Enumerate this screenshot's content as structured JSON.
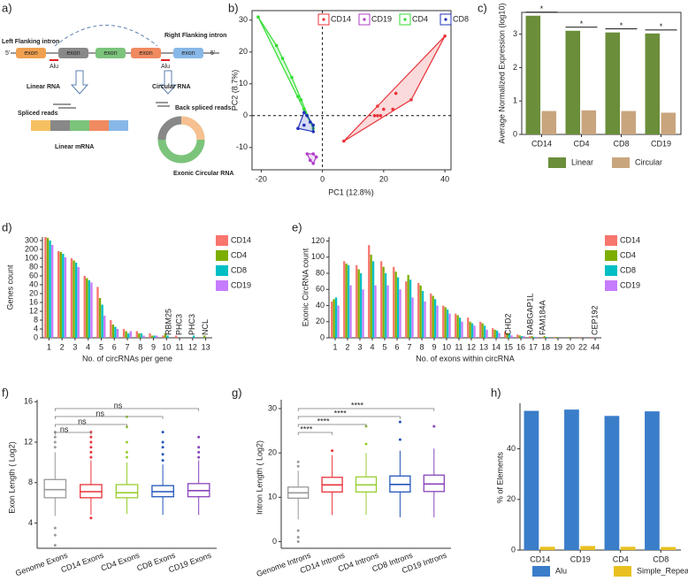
{
  "diagram": {
    "panel_label": "a)",
    "left_intron": "Left Flanking intron",
    "right_intron": "Right Flanking intron",
    "five_prime": [
      "5'",
      "5'"
    ],
    "exons": [
      "exon",
      "exon",
      "exon",
      "exon",
      "exon"
    ],
    "alu": [
      "Alu",
      "Alu"
    ],
    "linear_rna": "Linear RNA",
    "circular_rna": "Circular RNA",
    "spliced_reads": "Spliced reads",
    "back_spliced_reads": "Back spliced reads",
    "linear_mrna": "Linear mRNA",
    "exonic_circular_rna": "Exonic Circular RNA"
  },
  "chart_data": [
    {
      "type": "scatter",
      "panel_label": "b)",
      "x_label": "PC1 (12.8%)",
      "y_label": "PC2 (8.7%)",
      "xlim": [
        -23,
        42
      ],
      "ylim": [
        -17,
        33
      ],
      "xticks": [
        -20,
        0,
        20,
        40
      ],
      "yticks": [
        -10,
        0,
        10,
        20,
        30
      ],
      "frame": true,
      "zero_lines": true,
      "series": [
        {
          "name": "CD14",
          "color": "#e8333a",
          "x": [
            40,
            7,
            29,
            24,
            18,
            17,
            19,
            20,
            23,
            18
          ],
          "y": [
            25,
            -8,
            5,
            7,
            0,
            0,
            0,
            2,
            2,
            3
          ]
        },
        {
          "name": "CD19",
          "color": "#b03cc8",
          "x": [
            -3,
            -4,
            -2,
            -5,
            -3
          ],
          "y": [
            -12,
            -14,
            -13,
            -12,
            -15
          ]
        },
        {
          "name": "CD4",
          "color": "#33dd33",
          "x": [
            -21,
            -15,
            -13,
            -10,
            -8,
            -6,
            -5,
            -4,
            -3,
            -7
          ],
          "y": [
            31,
            22,
            18,
            12,
            6,
            2,
            0,
            -2,
            -4,
            5
          ]
        },
        {
          "name": "CD8",
          "color": "#2233bb",
          "x": [
            -5,
            -4,
            -3,
            -6,
            -3,
            -8,
            -6
          ],
          "y": [
            0,
            -2,
            -3,
            1,
            -5,
            -4,
            -3
          ]
        }
      ]
    },
    {
      "type": "bar",
      "panel_label": "c)",
      "y_label": "Average Normalized Expression (log10)",
      "categories": [
        "CD14",
        "CD4",
        "CD8",
        "CD19"
      ],
      "ylim": [
        0,
        3.65
      ],
      "yticks": [
        0,
        1,
        2,
        3
      ],
      "frame": true,
      "series": [
        {
          "name": "Linear",
          "color": "#6b8e3a",
          "values": [
            3.55,
            3.1,
            3.05,
            3.02
          ]
        },
        {
          "name": "Circular",
          "color": "#c9a57e",
          "values": [
            0.7,
            0.72,
            0.7,
            0.65
          ]
        }
      ],
      "annotations": [
        {
          "text": "*",
          "color": "#111"
        },
        {
          "text": "*",
          "color": "#111"
        },
        {
          "text": "*",
          "color": "#111"
        },
        {
          "text": "*",
          "color": "#111"
        }
      ]
    },
    {
      "type": "bar",
      "panel_label": "d)",
      "x_label": "No. of circRNAs per gene",
      "y_label": "Genes count",
      "y_scale": "piecewise",
      "categories": [
        "1",
        "2",
        "3",
        "4",
        "5",
        "6",
        "7",
        "8",
        "9",
        "10",
        "11",
        "12",
        "13"
      ],
      "ylim": [
        0,
        340
      ],
      "yticks": [
        0,
        4,
        8,
        12,
        16,
        20,
        40,
        60,
        80,
        100,
        200,
        300
      ],
      "series": [
        {
          "name": "CD14",
          "color": "#f8766d",
          "values": [
            340,
            180,
            100,
            60,
            35,
            8,
            4,
            3,
            2,
            1,
            1,
            0,
            0
          ]
        },
        {
          "name": "CD4",
          "color": "#7cae00",
          "values": [
            330,
            170,
            95,
            55,
            18,
            6,
            3,
            2,
            1,
            2,
            0,
            0,
            1
          ]
        },
        {
          "name": "CD8",
          "color": "#00bfc4",
          "values": [
            300,
            150,
            90,
            50,
            15,
            5,
            2,
            2,
            1,
            1,
            0,
            1,
            0
          ]
        },
        {
          "name": "CD19",
          "color": "#c77cff",
          "values": [
            250,
            110,
            80,
            45,
            10,
            4,
            3,
            1,
            1,
            0,
            0,
            0,
            0
          ]
        }
      ],
      "annotations": [
        {
          "text": "RBM25",
          "color": "#e8333a"
        },
        {
          "text": "PHC3",
          "color": "#9a4cd0"
        },
        {
          "text": "PHC3",
          "color": "#00a8b0"
        },
        {
          "text": "NCL",
          "color": "#5a9a00"
        }
      ]
    },
    {
      "type": "bar",
      "panel_label": "e)",
      "x_label": "No. of exons within circRNA",
      "y_label": "Exonic CircRNA count",
      "categories": [
        "1",
        "2",
        "3",
        "4",
        "5",
        "6",
        "7",
        "8",
        "9",
        "10",
        "11",
        "12",
        "13",
        "14",
        "15",
        "16",
        "17",
        "18",
        "19",
        "20",
        "22",
        "44"
      ],
      "ylim": [
        0,
        125
      ],
      "yticks": [
        0,
        20,
        40,
        60,
        80,
        100,
        120
      ],
      "series": [
        {
          "name": "CD14",
          "color": "#f8766d",
          "values": [
            45,
            95,
            90,
            115,
            95,
            88,
            70,
            68,
            55,
            40,
            30,
            25,
            20,
            12,
            8,
            4,
            2,
            1,
            1,
            0,
            1,
            1
          ]
        },
        {
          "name": "CD4",
          "color": "#7cae00",
          "values": [
            48,
            92,
            85,
            103,
            88,
            82,
            78,
            65,
            52,
            38,
            28,
            20,
            18,
            10,
            6,
            3,
            2,
            2,
            1,
            1,
            0,
            0
          ]
        },
        {
          "name": "CD8",
          "color": "#00bfc4",
          "values": [
            50,
            90,
            80,
            95,
            80,
            75,
            72,
            58,
            48,
            35,
            25,
            18,
            15,
            9,
            5,
            2,
            1,
            1,
            0,
            0,
            0,
            0
          ]
        },
        {
          "name": "CD19",
          "color": "#c77cff",
          "values": [
            40,
            65,
            60,
            65,
            65,
            60,
            50,
            45,
            40,
            30,
            20,
            15,
            10,
            6,
            3,
            2,
            1,
            0,
            0,
            0,
            0,
            0
          ]
        }
      ],
      "annotations": [
        {
          "text": "CHD2",
          "color": "#00a8b0"
        },
        {
          "text": "RABGAP1L",
          "color": "#9a4cd0"
        },
        {
          "text": "FAM184A",
          "color": "#5a9a00"
        },
        {
          "text": "CEP192",
          "color": "#e8333a"
        }
      ]
    },
    {
      "type": "box",
      "panel_label": "f)",
      "y_label": "Exon Length ( Log2)",
      "ylim": [
        1.5,
        16.2
      ],
      "yticks": [
        4,
        8,
        12,
        16
      ],
      "boxes": [
        {
          "name": "Genome Exons",
          "color": "#999999",
          "whisker_low": 4.7,
          "q1": 6.5,
          "median": 7.3,
          "q3": 8.3,
          "whisker_high": 11,
          "outliers": [
            11.5,
            12,
            12.5,
            13,
            3.5,
            2.8,
            1.8
          ]
        },
        {
          "name": "CD14 Exons",
          "color": "#e8333a",
          "whisker_low": 4.8,
          "q1": 6.5,
          "median": 7.1,
          "q3": 7.8,
          "whisker_high": 10.2,
          "outliers": [
            10.5,
            11,
            11.5,
            12,
            12.5,
            13,
            4.5
          ]
        },
        {
          "name": "CD4 Exons",
          "color": "#9acd32",
          "whisker_low": 4.9,
          "q1": 6.5,
          "median": 7.0,
          "q3": 7.8,
          "whisker_high": 10,
          "outliers": [
            10.5,
            11,
            12,
            13.5,
            14.5
          ]
        },
        {
          "name": "CD8 Exons",
          "color": "#2255bb",
          "whisker_low": 4.8,
          "q1": 6.6,
          "median": 7.1,
          "q3": 7.7,
          "whisker_high": 9.8,
          "outliers": [
            10.2,
            10.8,
            11.5,
            12,
            13
          ]
        },
        {
          "name": "CD19 Exons",
          "color": "#8844bb",
          "whisker_low": 4.8,
          "q1": 6.6,
          "median": 7.2,
          "q3": 7.9,
          "whisker_high": 10.2,
          "outliers": [
            10.5,
            11,
            11.5,
            12.5
          ]
        }
      ],
      "comparisons": [
        "ns",
        "ns",
        "ns",
        "ns"
      ]
    },
    {
      "type": "box",
      "panel_label": "g)",
      "y_label": "Intron Length ( Log2)",
      "ylim": [
        -1.5,
        32
      ],
      "yticks": [
        0,
        10,
        20,
        30
      ],
      "boxes": [
        {
          "name": "Genome Introns",
          "color": "#999999",
          "whisker_low": 5,
          "q1": 9.8,
          "median": 11,
          "q3": 12.3,
          "whisker_high": 16,
          "outliers": [
            2.5,
            1,
            0,
            17,
            18
          ]
        },
        {
          "name": "CD14 Introns",
          "color": "#e8333a",
          "whisker_low": 6,
          "q1": 11.2,
          "median": 12.8,
          "q3": 14.5,
          "whisker_high": 19.5,
          "outliers": [
            20.5
          ]
        },
        {
          "name": "CD4 Introns",
          "color": "#9acd32",
          "whisker_low": 6,
          "q1": 11.2,
          "median": 12.8,
          "q3": 14.6,
          "whisker_high": 20,
          "outliers": [
            22,
            26
          ]
        },
        {
          "name": "CD8 Introns",
          "color": "#2255bb",
          "whisker_low": 5.5,
          "q1": 11.2,
          "median": 12.9,
          "q3": 14.8,
          "whisker_high": 20.5,
          "outliers": [
            23,
            27
          ]
        },
        {
          "name": "CD19 Introns",
          "color": "#8844bb",
          "whisker_low": 5.5,
          "q1": 11.3,
          "median": 13,
          "q3": 15,
          "whisker_high": 21,
          "outliers": [
            26
          ]
        }
      ],
      "comparisons": [
        "****",
        "****",
        "****",
        "****"
      ]
    },
    {
      "type": "bar",
      "panel_label": "h)",
      "y_label": "% of Elements",
      "categories": [
        "CD14",
        "CD19",
        "CD4",
        "CD8"
      ],
      "ylim": [
        0,
        58
      ],
      "yticks": [
        0,
        20,
        40
      ],
      "series": [
        {
          "name": "Alu",
          "color": "#3a7dc9",
          "values": [
            55,
            55.5,
            53,
            54.8
          ]
        },
        {
          "name": "Simple_Repeats",
          "color": "#e8c020",
          "values": [
            1.3,
            1.6,
            1.3,
            1.2
          ]
        }
      ]
    }
  ]
}
